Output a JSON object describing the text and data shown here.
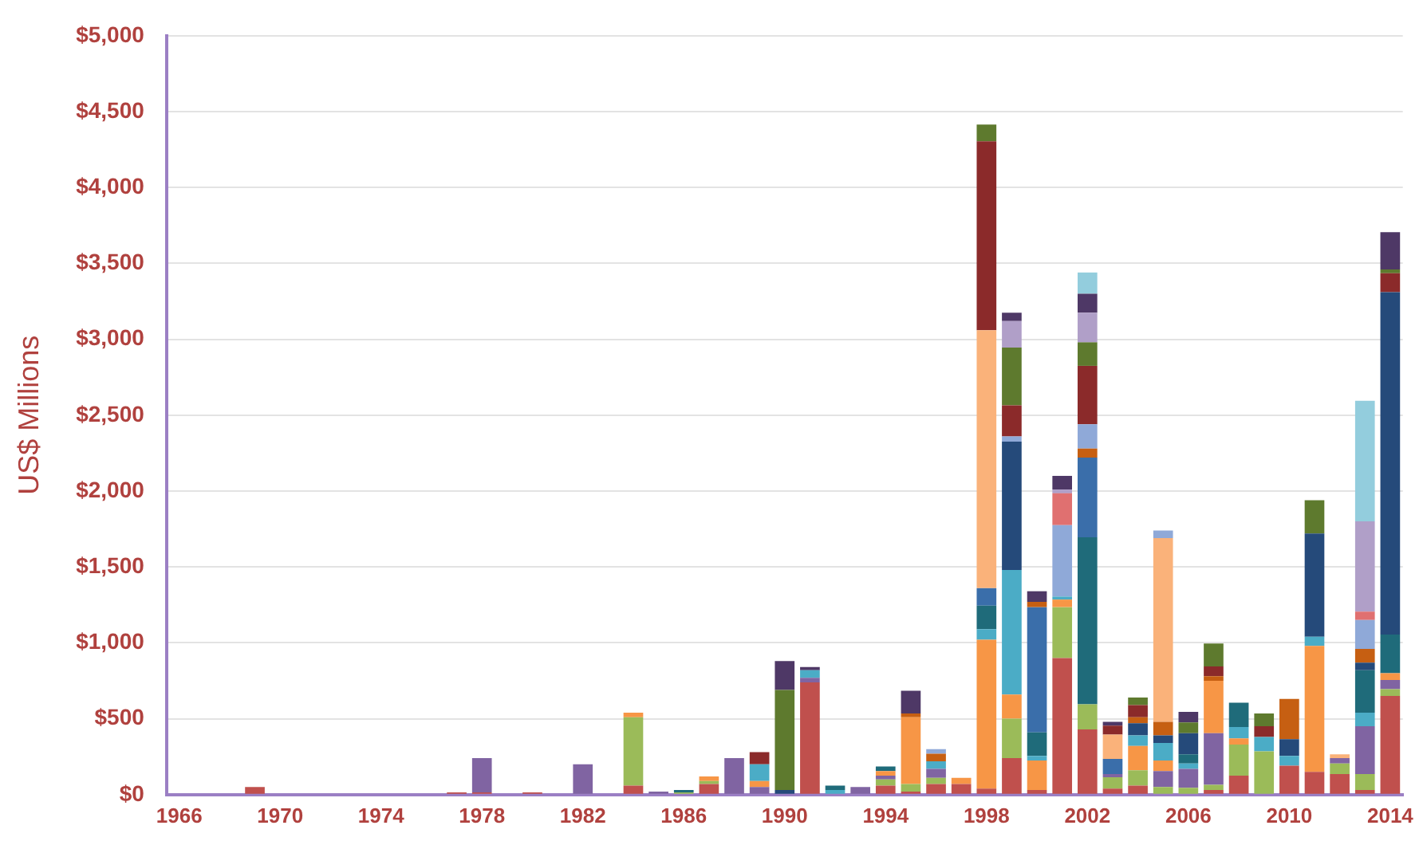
{
  "chart_data": {
    "type": "bar",
    "stacked": true,
    "ylabel": "US$ Millions",
    "grid": "y",
    "legend": false,
    "categories": [
      "1966",
      null,
      null,
      null,
      "1970",
      null,
      null,
      null,
      "1974",
      null,
      null,
      null,
      "1978",
      null,
      null,
      null,
      "1982",
      null,
      null,
      null,
      "1986",
      null,
      null,
      null,
      "1990",
      null,
      null,
      null,
      "1994",
      null,
      null,
      null,
      "1998",
      null,
      null,
      null,
      "2002",
      null,
      null,
      null,
      "2006",
      null,
      null,
      null,
      "2010",
      null,
      null,
      null,
      "2014"
    ],
    "ylim": [
      0,
      5000
    ],
    "yticks": [
      {
        "value": 0,
        "label": "$0"
      },
      {
        "value": 500,
        "label": "$500"
      },
      {
        "value": 1000,
        "label": "$1,000"
      },
      {
        "value": 1500,
        "label": "$1,500"
      },
      {
        "value": 2000,
        "label": "$2,000"
      },
      {
        "value": 2500,
        "label": "$2,500"
      },
      {
        "value": 3000,
        "label": "$3,000"
      },
      {
        "value": 3500,
        "label": "$3,500"
      },
      {
        "value": 4000,
        "label": "$4,000"
      },
      {
        "value": 4500,
        "label": "$4,500"
      },
      {
        "value": 5000,
        "label": "$5,000"
      }
    ],
    "series": [
      {
        "color": "#c0504d",
        "values": [
          0,
          0,
          0,
          50,
          0,
          0,
          0,
          0,
          0,
          0,
          0,
          15,
          15,
          0,
          15,
          0,
          0,
          0,
          60,
          0,
          0,
          70,
          0,
          0,
          0,
          740,
          0,
          0,
          60,
          20,
          70,
          70,
          40,
          240,
          30,
          900,
          430,
          40,
          60,
          0,
          0,
          30,
          125,
          0,
          190,
          150,
          135,
          30,
          650
        ]
      },
      {
        "color": "#9bbb59",
        "values": [
          0,
          0,
          0,
          0,
          0,
          0,
          0,
          0,
          0,
          0,
          0,
          0,
          0,
          0,
          0,
          0,
          0,
          0,
          450,
          0,
          15,
          20,
          0,
          0,
          0,
          0,
          0,
          0,
          40,
          50,
          40,
          0,
          0,
          260,
          0,
          335,
          165,
          75,
          100,
          50,
          45,
          35,
          205,
          285,
          0,
          0,
          70,
          105,
          45
        ]
      },
      {
        "color": "#8064a2",
        "values": [
          0,
          0,
          0,
          0,
          0,
          0,
          0,
          0,
          0,
          0,
          0,
          0,
          225,
          0,
          0,
          0,
          200,
          0,
          0,
          20,
          0,
          0,
          240,
          50,
          0,
          30,
          0,
          50,
          25,
          0,
          60,
          0,
          0,
          0,
          0,
          0,
          0,
          20,
          0,
          105,
          125,
          340,
          0,
          0,
          0,
          0,
          35,
          315,
          60
        ]
      },
      {
        "color": "#f79646",
        "values": [
          0,
          0,
          0,
          0,
          0,
          0,
          0,
          0,
          0,
          0,
          0,
          0,
          0,
          0,
          0,
          0,
          0,
          0,
          30,
          0,
          0,
          30,
          0,
          40,
          0,
          0,
          0,
          0,
          30,
          440,
          0,
          40,
          980,
          160,
          195,
          50,
          0,
          0,
          160,
          70,
          0,
          345,
          40,
          0,
          0,
          830,
          0,
          0,
          45
        ]
      },
      {
        "color": "#4bacc6",
        "values": [
          0,
          0,
          0,
          0,
          0,
          0,
          0,
          0,
          0,
          0,
          0,
          0,
          0,
          0,
          0,
          0,
          0,
          0,
          0,
          0,
          0,
          0,
          0,
          110,
          0,
          50,
          30,
          0,
          0,
          0,
          50,
          0,
          70,
          820,
          30,
          20,
          0,
          0,
          70,
          115,
          35,
          0,
          75,
          95,
          65,
          60,
          0,
          90,
          0
        ]
      },
      {
        "color": "#1f6b7a",
        "values": [
          0,
          0,
          0,
          0,
          0,
          0,
          0,
          0,
          0,
          0,
          0,
          0,
          0,
          0,
          0,
          0,
          0,
          0,
          0,
          0,
          15,
          0,
          0,
          0,
          0,
          0,
          30,
          0,
          30,
          0,
          0,
          0,
          155,
          0,
          155,
          0,
          1100,
          0,
          0,
          0,
          60,
          0,
          160,
          0,
          0,
          0,
          0,
          280,
          255
        ]
      },
      {
        "color": "#3a6eaa",
        "values": [
          0,
          0,
          0,
          0,
          0,
          0,
          0,
          0,
          0,
          0,
          0,
          0,
          0,
          0,
          0,
          0,
          0,
          0,
          0,
          0,
          0,
          0,
          0,
          0,
          0,
          0,
          0,
          0,
          0,
          0,
          0,
          0,
          115,
          0,
          825,
          0,
          525,
          100,
          0,
          0,
          0,
          0,
          0,
          0,
          0,
          0,
          0,
          0,
          0
        ]
      },
      {
        "color": "#254a7a",
        "values": [
          0,
          0,
          0,
          0,
          0,
          0,
          0,
          0,
          0,
          0,
          0,
          0,
          0,
          0,
          0,
          0,
          0,
          0,
          0,
          0,
          0,
          0,
          0,
          0,
          30,
          0,
          0,
          0,
          0,
          0,
          0,
          0,
          0,
          845,
          0,
          0,
          0,
          0,
          80,
          50,
          140,
          0,
          0,
          0,
          110,
          680,
          0,
          50,
          2255
        ]
      },
      {
        "color": "#c65f12",
        "values": [
          0,
          0,
          0,
          0,
          0,
          0,
          0,
          0,
          0,
          0,
          0,
          0,
          0,
          0,
          0,
          0,
          0,
          0,
          0,
          0,
          0,
          0,
          0,
          0,
          0,
          0,
          0,
          0,
          0,
          25,
          50,
          0,
          0,
          0,
          35,
          0,
          60,
          0,
          40,
          90,
          0,
          30,
          0,
          0,
          265,
          0,
          0,
          90,
          0
        ]
      },
      {
        "color": "#fab27a",
        "values": [
          0,
          0,
          0,
          0,
          0,
          0,
          0,
          0,
          0,
          0,
          0,
          0,
          0,
          0,
          0,
          0,
          0,
          0,
          0,
          0,
          0,
          0,
          0,
          0,
          0,
          0,
          0,
          0,
          0,
          0,
          0,
          0,
          1700,
          0,
          0,
          0,
          0,
          160,
          0,
          1210,
          0,
          0,
          0,
          0,
          0,
          0,
          25,
          0,
          0
        ]
      },
      {
        "color": "#8fa9d8",
        "values": [
          0,
          0,
          0,
          0,
          0,
          0,
          0,
          0,
          0,
          0,
          0,
          0,
          0,
          0,
          0,
          0,
          0,
          0,
          0,
          0,
          0,
          0,
          0,
          0,
          0,
          0,
          0,
          0,
          0,
          0,
          30,
          0,
          0,
          35,
          0,
          470,
          160,
          0,
          0,
          50,
          0,
          0,
          0,
          0,
          0,
          0,
          0,
          190,
          0
        ]
      },
      {
        "color": "#e07070",
        "values": [
          0,
          0,
          0,
          0,
          0,
          0,
          0,
          0,
          0,
          0,
          0,
          0,
          0,
          0,
          0,
          0,
          0,
          0,
          0,
          0,
          0,
          0,
          0,
          0,
          0,
          0,
          0,
          0,
          0,
          0,
          0,
          0,
          0,
          0,
          0,
          210,
          0,
          0,
          0,
          0,
          0,
          0,
          0,
          0,
          0,
          0,
          0,
          55,
          0
        ]
      },
      {
        "color": "#8b2a2a",
        "values": [
          0,
          0,
          0,
          0,
          0,
          0,
          0,
          0,
          0,
          0,
          0,
          0,
          0,
          0,
          0,
          0,
          0,
          0,
          0,
          0,
          0,
          0,
          0,
          80,
          0,
          0,
          0,
          0,
          0,
          0,
          0,
          0,
          1245,
          205,
          0,
          0,
          385,
          60,
          80,
          0,
          0,
          65,
          0,
          70,
          0,
          0,
          0,
          0,
          125
        ]
      },
      {
        "color": "#5e7a2e",
        "values": [
          0,
          0,
          0,
          0,
          0,
          0,
          0,
          0,
          0,
          0,
          0,
          0,
          0,
          0,
          0,
          0,
          0,
          0,
          0,
          0,
          0,
          0,
          0,
          0,
          660,
          0,
          0,
          0,
          0,
          0,
          0,
          0,
          110,
          380,
          0,
          0,
          155,
          0,
          50,
          0,
          70,
          150,
          0,
          85,
          0,
          220,
          0,
          0,
          25
        ]
      },
      {
        "color": "#b09fc8",
        "values": [
          0,
          0,
          0,
          0,
          0,
          0,
          0,
          0,
          0,
          0,
          0,
          0,
          0,
          0,
          0,
          0,
          0,
          0,
          0,
          0,
          0,
          0,
          0,
          0,
          0,
          0,
          0,
          0,
          0,
          0,
          0,
          0,
          0,
          175,
          0,
          25,
          195,
          0,
          0,
          0,
          0,
          0,
          0,
          0,
          0,
          0,
          0,
          595,
          0
        ]
      },
      {
        "color": "#4e3866",
        "values": [
          0,
          0,
          0,
          0,
          0,
          0,
          0,
          0,
          0,
          0,
          0,
          0,
          0,
          0,
          0,
          0,
          0,
          0,
          0,
          0,
          0,
          0,
          0,
          0,
          190,
          20,
          0,
          0,
          0,
          150,
          0,
          0,
          0,
          55,
          70,
          90,
          125,
          25,
          0,
          0,
          70,
          0,
          0,
          0,
          0,
          0,
          0,
          0,
          245
        ]
      },
      {
        "color": "#93cddd",
        "values": [
          0,
          0,
          0,
          0,
          0,
          0,
          0,
          0,
          0,
          0,
          0,
          0,
          0,
          0,
          0,
          0,
          0,
          0,
          0,
          0,
          0,
          0,
          0,
          0,
          0,
          0,
          0,
          0,
          0,
          0,
          0,
          0,
          0,
          0,
          0,
          0,
          140,
          0,
          0,
          0,
          0,
          0,
          0,
          0,
          0,
          0,
          0,
          795,
          0
        ]
      }
    ]
  }
}
